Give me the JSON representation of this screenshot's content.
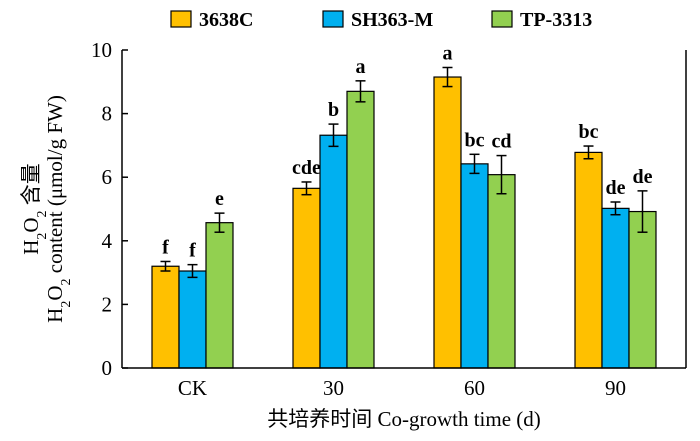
{
  "chart_data": {
    "type": "bar",
    "categories": [
      "CK",
      "30",
      "60",
      "90"
    ],
    "series": [
      {
        "name": "3638C",
        "color": "#FFC000",
        "values": [
          3.2,
          5.65,
          9.15,
          6.78
        ],
        "errors": [
          0.15,
          0.2,
          0.3,
          0.2
        ],
        "labels": [
          "f",
          "cde",
          "a",
          "bc"
        ]
      },
      {
        "name": "SH363-M",
        "color": "#00B0F0",
        "values": [
          3.05,
          7.32,
          6.42,
          5.02
        ],
        "errors": [
          0.2,
          0.35,
          0.3,
          0.2
        ],
        "labels": [
          "f",
          "b",
          "bc",
          "de"
        ]
      },
      {
        "name": "TP-3313",
        "color": "#92D050",
        "values": [
          4.57,
          8.7,
          6.08,
          4.92
        ],
        "errors": [
          0.3,
          0.33,
          0.6,
          0.65
        ],
        "labels": [
          "e",
          "a",
          "cd",
          "de"
        ]
      }
    ],
    "yticks": [
      "0",
      "2",
      "4",
      "6",
      "8",
      "10"
    ],
    "ylim": [
      0,
      10
    ],
    "ylabel_line1_main": "H",
    "ylabel_line1_sub": "2",
    "ylabel_line1_main2": "O",
    "ylabel_line1_sub2": "2",
    "ylabel_line1_rest": " 含量",
    "ylabel_line2_main": "H",
    "ylabel_line2_sub": "2",
    "ylabel_line2_main2": "O",
    "ylabel_line2_sub2": "2",
    "ylabel_line2_rest": " content (μmol/g FW)",
    "xlabel": "共培养时间 Co-growth time (d)",
    "legend_position": "top"
  }
}
